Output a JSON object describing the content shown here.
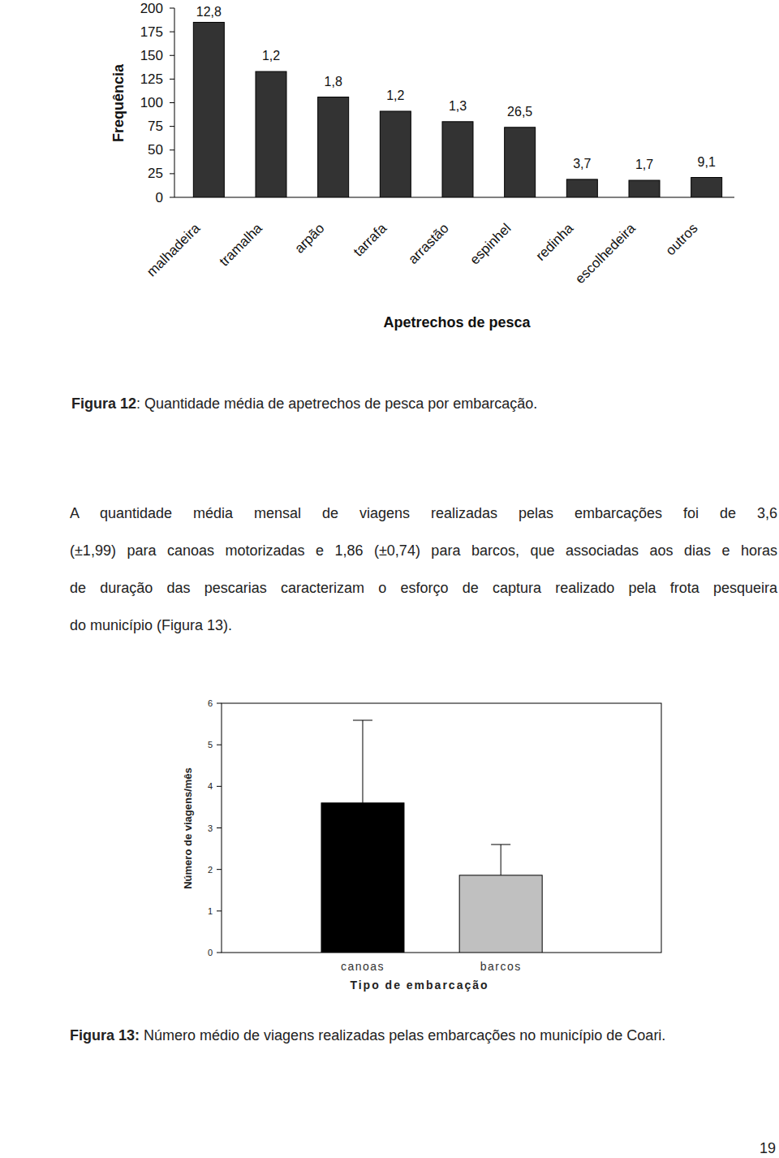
{
  "chart_data": [
    {
      "type": "bar",
      "y_label": "Frequência",
      "x_label": "Apetrechos de pesca",
      "categories": [
        "malhadeira",
        "tramalha",
        "arpão",
        "tarrafa",
        "arrastão",
        "espinhel",
        "redinha",
        "escolhedeira",
        "outros"
      ],
      "values": [
        185,
        133,
        106,
        91,
        80,
        74,
        19,
        18,
        21
      ],
      "annotations": [
        "12,8",
        "1,2",
        "1,8",
        "1,2",
        "1,3",
        "26,5",
        "3,7",
        "1,7",
        "9,1"
      ],
      "color": "#333333",
      "ylim": [
        0,
        200
      ],
      "yticks": [
        0,
        25,
        50,
        75,
        100,
        125,
        150,
        175,
        200
      ],
      "grid": false,
      "caption": {
        "label": "Figura 12",
        "text": ": Quantidade média de apetrechos de pesca por embarcação."
      }
    },
    {
      "type": "bar",
      "y_label": "Número de viagens/mês",
      "x_label": "Tipo de embarcação",
      "categories": [
        "canoas",
        "barcos"
      ],
      "values": [
        3.6,
        1.86
      ],
      "errors": [
        1.99,
        0.74
      ],
      "colors": [
        "#000000",
        "#c0c0c0"
      ],
      "ylim": [
        0,
        6
      ],
      "yticks": [
        0,
        1,
        2,
        3,
        4,
        5,
        6
      ],
      "grid": false,
      "caption": {
        "label": "Figura 13:",
        "text": "Número médio de viagens realizadas pelas embarcações no município de Coari."
      }
    }
  ],
  "document": {
    "paragraph_lines": [
      "A quantidade média mensal de viagens realizadas pelas embarcações foi de 3,6",
      "(±1,99) para canoas motorizadas e 1,86 (±0,74) para barcos, que associadas aos dias e horas",
      "de duração das pescarias caracterizam o esforço de captura realizado pela frota pesqueira",
      "do município (Figura 13)."
    ],
    "page_number": "19"
  }
}
